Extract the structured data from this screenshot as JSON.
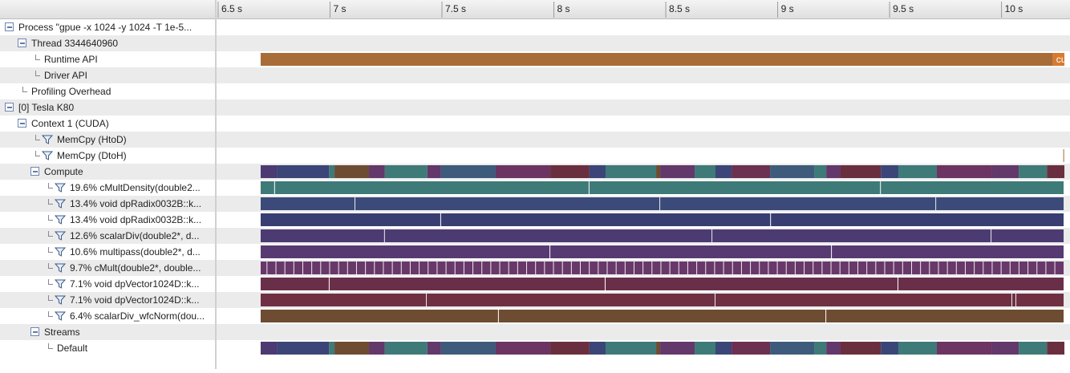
{
  "timeline": {
    "range": [
      6.493,
      10.306
    ],
    "ticks": [
      {
        "value": 6.5,
        "label": "6.5 s"
      },
      {
        "value": 7,
        "label": "7 s"
      },
      {
        "value": 7.5,
        "label": "7.5 s"
      },
      {
        "value": 8,
        "label": "8 s"
      },
      {
        "value": 8.5,
        "label": "8.5 s"
      },
      {
        "value": 9,
        "label": "9 s"
      },
      {
        "value": 9.5,
        "label": "9.5 s"
      },
      {
        "value": 10,
        "label": "10 s"
      }
    ]
  },
  "rows": [
    {
      "label": "Process \"gpue -x 1024 -y 1024 -T 1e-5...",
      "level": 0,
      "node": "toggle"
    },
    {
      "label": "Thread 3344640960",
      "level": 1,
      "node": "toggle"
    },
    {
      "label": "Runtime API",
      "level": 2,
      "node": "leaf",
      "bars": {
        "edges": [
          6.69,
          10.23,
          10.281
        ],
        "colors": [
          "#a86c38",
          "#d77a30"
        ],
        "labels": [
          null,
          "cudaMe..."
        ]
      }
    },
    {
      "label": "Driver API",
      "level": 2,
      "node": "leaf"
    },
    {
      "label": "Profiling Overhead",
      "level": 1,
      "node": "leaf"
    },
    {
      "label": "[0] Tesla K80",
      "level": 0,
      "node": "toggle"
    },
    {
      "label": "Context 1 (CUDA)",
      "level": 1,
      "node": "toggle"
    },
    {
      "label": "MemCpy (HtoD)",
      "level": 2,
      "node": "filter"
    },
    {
      "label": "MemCpy (DtoH)",
      "level": 2,
      "node": "filter",
      "bars": {
        "edges": [
          10.276,
          10.281
        ],
        "color": "#a86c38"
      }
    },
    {
      "label": "Compute",
      "level": 2,
      "node": "toggle",
      "bars": {
        "edges": [
          6.69,
          6.762,
          6.995,
          7.02,
          7.174,
          7.245,
          7.435,
          7.496,
          7.74,
          7.984,
          8.159,
          8.231,
          8.457,
          8.475,
          8.629,
          8.722,
          8.794,
          8.966,
          9.163,
          9.217,
          9.281,
          9.461,
          9.539,
          9.711,
          9.955,
          10.077,
          10.203,
          10.281
        ],
        "colors": [
          "#4b3b72",
          "#3b4577",
          "#3e7a78",
          "#6d4c32",
          "#63386a",
          "#3e7a78",
          "#63386a",
          "#3e5b7b",
          "#6c3462",
          "#6a2f3e",
          "#3b4577",
          "#3e7a78",
          "#6d4c32",
          "#63386a",
          "#3e7a78",
          "#3b4577",
          "#6c3050",
          "#3e5b7b",
          "#3e7a78",
          "#63386a",
          "#6a2f3e",
          "#3b4577",
          "#3e7a78",
          "#6c3462",
          "#63386a",
          "#3e7a78",
          "#6a2f3e"
        ]
      }
    },
    {
      "label": "19.6% cMultDensity(double2...",
      "level": 3,
      "node": "filter",
      "bars": {
        "edges": [
          6.69,
          6.754,
          8.159,
          9.461,
          10.281
        ],
        "color": "#3e7a78"
      }
    },
    {
      "label": "13.4% void dpRadix0032B::k...",
      "level": 3,
      "node": "filter",
      "bars": {
        "edges": [
          6.69,
          7.113,
          8.475,
          9.708,
          10.281
        ],
        "color": "#3b4a78"
      }
    },
    {
      "label": "13.4% void dpRadix0032B::k...",
      "level": 3,
      "node": "filter",
      "bars": {
        "edges": [
          6.69,
          7.496,
          8.97,
          10.281
        ],
        "color": "#383d72"
      }
    },
    {
      "label": "12.6% scalarDiv(double2*, d...",
      "level": 3,
      "node": "filter",
      "bars": {
        "edges": [
          6.69,
          7.245,
          8.708,
          9.955,
          10.281
        ],
        "color": "#4b3b72"
      }
    },
    {
      "label": "10.6% multipass(double2*, d...",
      "level": 3,
      "node": "filter",
      "bars": {
        "edges": [
          6.69,
          7.984,
          9.242,
          10.281
        ],
        "color": "#573a72"
      }
    },
    {
      "label": "9.7% cMult(double2*, double...",
      "level": 3,
      "node": "filter",
      "bars": {
        "edges": [
          6.69,
          6.72,
          6.76,
          6.8,
          6.84,
          6.88,
          6.92,
          6.96,
          7.0,
          7.04,
          7.08,
          7.12,
          7.16,
          7.2,
          7.24,
          7.28,
          7.32,
          7.36,
          7.4,
          7.44,
          7.48,
          7.52,
          7.56,
          7.6,
          7.64,
          7.68,
          7.72,
          7.76,
          7.8,
          7.84,
          7.88,
          7.92,
          7.96,
          8.0,
          8.04,
          8.08,
          8.12,
          8.16,
          8.2,
          8.24,
          8.28,
          8.32,
          8.36,
          8.4,
          8.44,
          8.48,
          8.52,
          8.56,
          8.6,
          8.64,
          8.68,
          8.72,
          8.76,
          8.8,
          8.84,
          8.88,
          8.92,
          8.96,
          9.0,
          9.04,
          9.08,
          9.12,
          9.16,
          9.2,
          9.24,
          9.28,
          9.32,
          9.36,
          9.4,
          9.44,
          9.48,
          9.52,
          9.56,
          9.6,
          9.64,
          9.68,
          9.72,
          9.76,
          9.8,
          9.84,
          9.88,
          9.92,
          9.96,
          10.0,
          10.04,
          10.08,
          10.12,
          10.16,
          10.2,
          10.24,
          10.281
        ],
        "color": "#68386a"
      }
    },
    {
      "label": "7.1% void dpVector1024D::k...",
      "level": 3,
      "node": "filter",
      "bars": {
        "edges": [
          6.69,
          6.998,
          8.231,
          9.539,
          10.281
        ],
        "color": "#6a2f48"
      }
    },
    {
      "label": "7.1% void dpVector1024D::k...",
      "level": 3,
      "node": "filter",
      "bars": {
        "edges": [
          6.69,
          7.432,
          8.722,
          10.048,
          10.066,
          10.281
        ],
        "color": "#6e3042"
      }
    },
    {
      "label": "6.4% scalarDiv_wfcNorm(dou...",
      "level": 3,
      "node": "filter",
      "bars": {
        "edges": [
          6.69,
          7.754,
          9.217,
          10.281
        ],
        "color": "#6d4c32"
      }
    },
    {
      "label": "Streams",
      "level": 2,
      "node": "toggle"
    },
    {
      "label": "Default",
      "level": 3,
      "node": "leaf",
      "bars": {
        "edges": [
          6.69,
          6.762,
          6.995,
          7.02,
          7.174,
          7.245,
          7.435,
          7.496,
          7.74,
          7.984,
          8.159,
          8.231,
          8.457,
          8.475,
          8.629,
          8.722,
          8.794,
          8.966,
          9.163,
          9.217,
          9.281,
          9.461,
          9.539,
          9.711,
          9.955,
          10.077,
          10.203,
          10.281
        ],
        "colors": [
          "#4b3b72",
          "#3b4577",
          "#3e7a78",
          "#6d4c32",
          "#63386a",
          "#3e7a78",
          "#63386a",
          "#3e5b7b",
          "#6c3462",
          "#6a2f3e",
          "#3b4577",
          "#3e7a78",
          "#6d4c32",
          "#63386a",
          "#3e7a78",
          "#3b4577",
          "#6c3050",
          "#3e5b7b",
          "#3e7a78",
          "#63386a",
          "#6a2f3e",
          "#3b4577",
          "#3e7a78",
          "#6c3462",
          "#63386a",
          "#3e7a78",
          "#6a2f3e"
        ]
      }
    }
  ]
}
